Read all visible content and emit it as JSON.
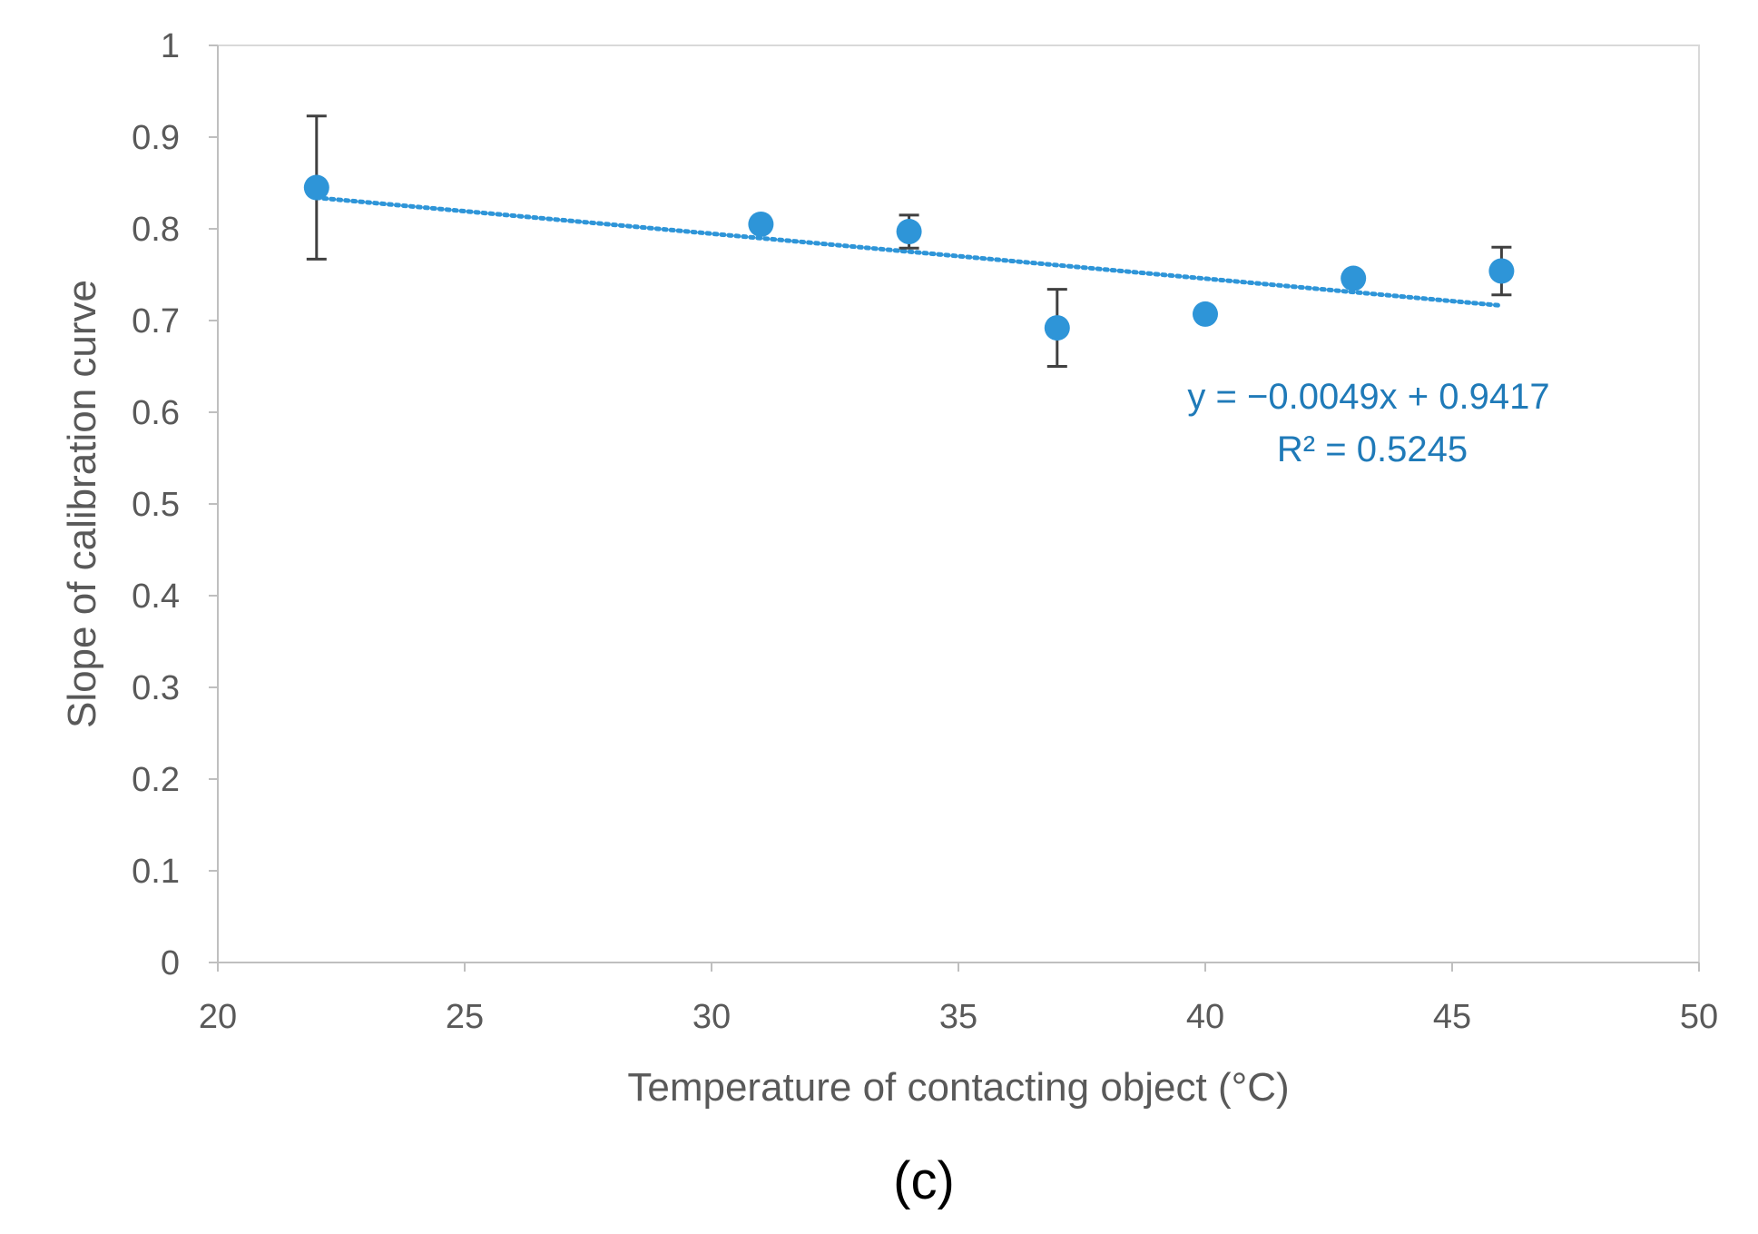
{
  "chart_data": {
    "type": "scatter",
    "xlabel": "Temperature of contacting object (°C)",
    "ylabel": "Slope of calibration curve",
    "xlim": [
      20,
      50
    ],
    "ylim": [
      0,
      1
    ],
    "xticks": [
      "20",
      "25",
      "30",
      "35",
      "40",
      "45",
      "50"
    ],
    "yticks": [
      "0",
      "0.1",
      "0.2",
      "0.3",
      "0.4",
      "0.5",
      "0.6",
      "0.7",
      "0.8",
      "0.9",
      "1"
    ],
    "grid": false,
    "series": [
      {
        "x": [
          22,
          31,
          34,
          37,
          40,
          43,
          46
        ],
        "y": [
          0.845,
          0.805,
          0.797,
          0.692,
          0.707,
          0.746,
          0.754
        ],
        "error": [
          0.078,
          0,
          0.018,
          0.042,
          0,
          0,
          0.026
        ],
        "color": "#2e95d8"
      }
    ],
    "trendline": {
      "type": "linear",
      "slope": -0.0049,
      "intercept": 0.9417,
      "x_range": [
        22,
        46
      ],
      "color": "#2e95d8",
      "equation": "y = −0.0049x + 0.9417",
      "r_squared": "R² = 0.5245"
    },
    "panel_label": "(c)"
  }
}
